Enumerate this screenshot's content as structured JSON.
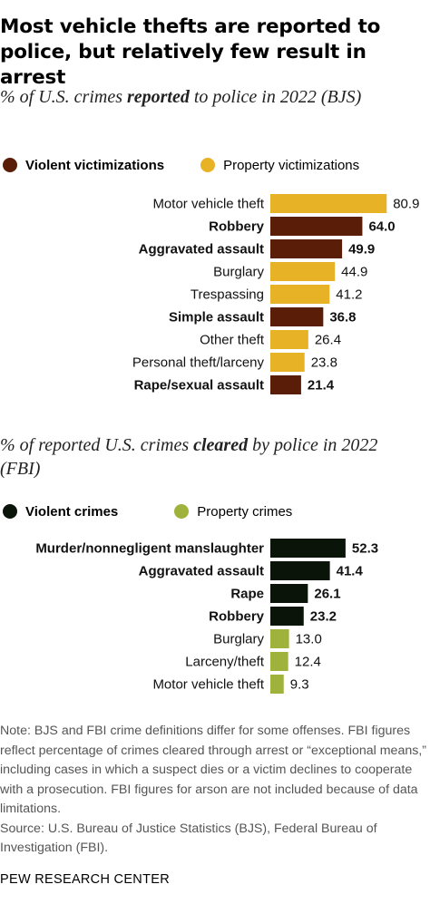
{
  "title": "Most vehicle thefts are reported to police, but relatively few result in arrest",
  "colors": {
    "violent_reported": "#5a1e08",
    "property_reported": "#e8b227",
    "violent_cleared": "#0a1409",
    "property_cleared": "#9fb23c"
  },
  "chart_data": [
    {
      "type": "bar",
      "orientation": "horizontal",
      "subtitle": {
        "pre": "% of U.S. crimes ",
        "emph": "reported",
        "post": " to police in 2022 (BJS)"
      },
      "legend": [
        "Violent victimizations",
        "Property victimizations"
      ],
      "categories": [
        "Motor vehicle theft",
        "Robbery",
        "Aggravated assault",
        "Burglary",
        "Trespassing",
        "Simple assault",
        "Other theft",
        "Personal theft/larceny",
        "Rape/sexual assault"
      ],
      "values": [
        80.9,
        64.0,
        49.9,
        44.9,
        41.2,
        36.8,
        26.4,
        23.8,
        21.4
      ],
      "labels": [
        "80.9",
        "64.0",
        "49.9",
        "44.9",
        "41.2",
        "36.8",
        "26.4",
        "23.8",
        "21.4"
      ],
      "groups": [
        "property",
        "violent",
        "violent",
        "property",
        "property",
        "violent",
        "property",
        "property",
        "violent"
      ],
      "group_names": {
        "violent": "Violent victimizations",
        "property": "Property victimizations"
      }
    },
    {
      "type": "bar",
      "orientation": "horizontal",
      "subtitle": {
        "pre": "% of reported U.S. crimes ",
        "emph": "cleared",
        "post": " by police in 2022 (FBI)"
      },
      "legend": [
        "Violent crimes",
        "Property crimes"
      ],
      "categories": [
        "Murder/nonnegligent manslaughter",
        "Aggravated assault",
        "Rape",
        "Robbery",
        "Burglary",
        "Larceny/theft",
        "Motor vehicle theft"
      ],
      "values": [
        52.3,
        41.4,
        26.1,
        23.2,
        13.0,
        12.4,
        9.3
      ],
      "labels": [
        "52.3",
        "41.4",
        "26.1",
        "23.2",
        "13.0",
        "12.4",
        "9.3"
      ],
      "groups": [
        "violent",
        "violent",
        "violent",
        "violent",
        "property",
        "property",
        "property"
      ],
      "group_names": {
        "violent": "Violent crimes",
        "property": "Property crimes"
      }
    }
  ],
  "note": "Note: BJS and FBI crime definitions differ for some offenses. FBI figures reflect percentage of crimes cleared through arrest or “exceptional means,” including cases in which a suspect dies or a victim declines to cooperate with a prosecution. FBI figures for arson are not included because of data limitations.",
  "source": "Source: U.S. Bureau of Justice Statistics (BJS), Federal Bureau of Investigation (FBI).",
  "footer": "PEW RESEARCH CENTER"
}
